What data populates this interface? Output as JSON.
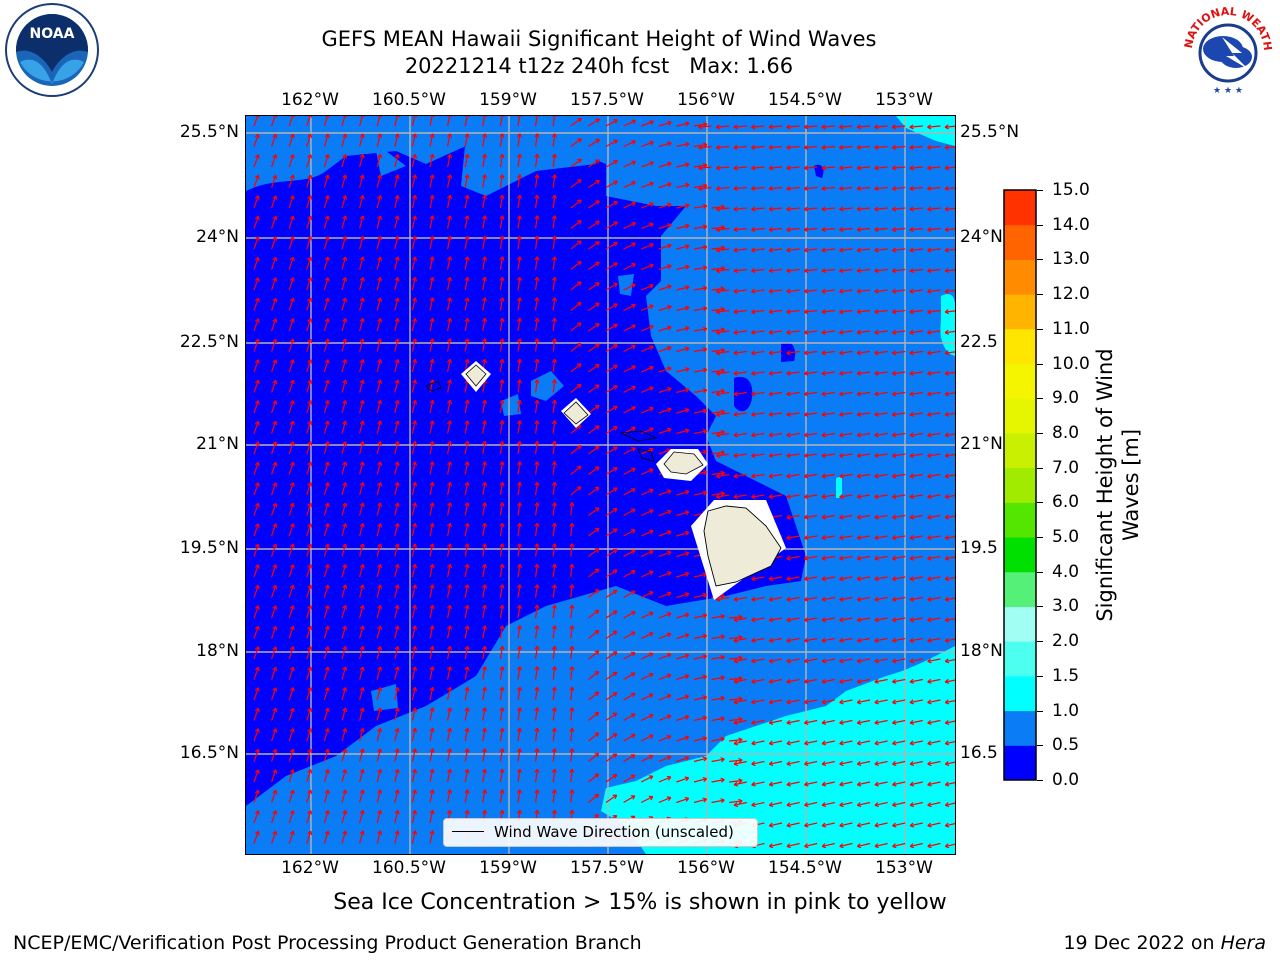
{
  "title": {
    "line1": "GEFS MEAN Hawaii Significant Height of Wind Waves",
    "line2": "20221214 t12z 240h fcst   Max: 1.66"
  },
  "map": {
    "lon_ticks": [
      "162°W",
      "160.5°W",
      "159°W",
      "157.5°W",
      "156°W",
      "154.5°W",
      "153°W"
    ],
    "lat_ticks": [
      "25.5°N",
      "24°N",
      "22.5°N",
      "21°N",
      "19.5°N",
      "18°N",
      "16.5°N"
    ],
    "right_lat_ticks": [
      "25.5°N",
      "24°N",
      "22.5",
      "21°N",
      "19.5",
      "18°N",
      "16.5"
    ],
    "legend_label": "Wind Wave Direction (unscaled)",
    "colors": {
      "band_0_0_5": "#0000ff",
      "band_0_5_1_0": "#0a7cf5",
      "band_1_0_1_5": "#00ffff",
      "land": "#efebd9",
      "arrow": "#ff0000",
      "grid": "#b4b4b4"
    }
  },
  "colorbar": {
    "ticks": [
      "15.0",
      "14.0",
      "13.0",
      "12.0",
      "11.0",
      "10.0",
      "9.0",
      "8.0",
      "7.0",
      "6.0",
      "5.0",
      "4.0",
      "3.0",
      "2.0",
      "1.5",
      "1.0",
      "0.5",
      "0.0"
    ],
    "colors": [
      "#0000ff",
      "#0a7cf5",
      "#00ffff",
      "#4dffee",
      "#a0fff2",
      "#55f078",
      "#00e000",
      "#55e600",
      "#a0eb00",
      "#c8f000",
      "#e6f500",
      "#f5f500",
      "#ffe600",
      "#ffb400",
      "#ff8c00",
      "#ff6400",
      "#ff3200"
    ],
    "label_line1": "Significant Height of Wind",
    "label_line2": "Waves [m]"
  },
  "caption": "Sea Ice Concentration > 15% is shown in pink to yellow",
  "footer": {
    "left": "NCEP/EMC/Verification Post Processing Product Generation Branch",
    "right_prefix": "19 Dec 2022 on ",
    "right_host": "Hera"
  },
  "logos": {
    "noaa": "NOAA",
    "nws": "NATIONAL WEATHER SERVICE"
  }
}
